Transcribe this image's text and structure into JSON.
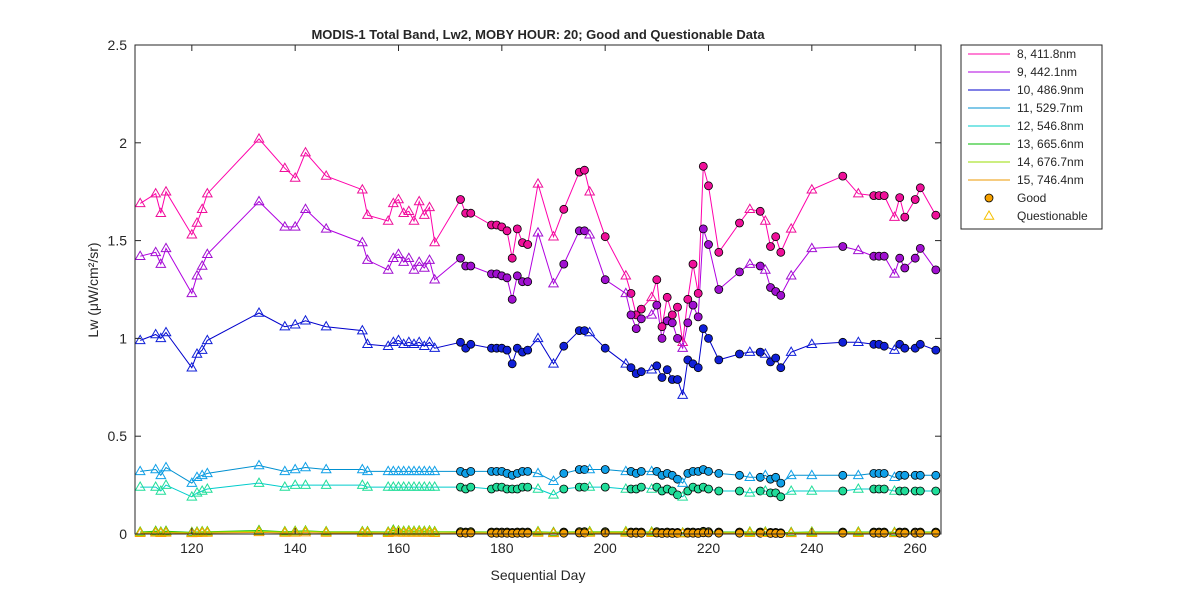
{
  "chart_data": {
    "type": "line",
    "title": "MODIS-1 Total Band,  Lw2, MOBY HOUR: 20;  Good and Questionable Data",
    "xlabel": "Sequential Day",
    "ylabel": "Lw (μW/cm²/sr)",
    "xlim": [
      109,
      265
    ],
    "ylim": [
      0,
      2.5
    ],
    "xticks": [
      120,
      140,
      160,
      180,
      200,
      220,
      240,
      260
    ],
    "yticks": [
      0,
      0.5,
      1,
      1.5,
      2,
      2.5
    ],
    "xtick_labels": [
      "120",
      "140",
      "160",
      "180",
      "200",
      "220",
      "240",
      "260"
    ],
    "ytick_labels": [
      "0",
      "0.5",
      "1",
      "1.5",
      "2",
      "2.5"
    ],
    "grid": false,
    "legend_position": "outside-top-right",
    "x": [
      110,
      113,
      114,
      115,
      120,
      121,
      122,
      123,
      133,
      138,
      140,
      142,
      146,
      153,
      154,
      158,
      159,
      160,
      161,
      162,
      163,
      164,
      165,
      166,
      167,
      172,
      173,
      174,
      178,
      179,
      180,
      181,
      182,
      183,
      184,
      185,
      187,
      190,
      192,
      195,
      196,
      197,
      200,
      204,
      205,
      206,
      207,
      209,
      210,
      211,
      212,
      213,
      214,
      215,
      216,
      217,
      218,
      219,
      220,
      222,
      226,
      228,
      230,
      231,
      232,
      233,
      234,
      236,
      240,
      246,
      249,
      252,
      253,
      254,
      256,
      257,
      258,
      260,
      261,
      264
    ],
    "flags": [
      "Q",
      "Q",
      "Q",
      "Q",
      "Q",
      "Q",
      "Q",
      "Q",
      "Q",
      "Q",
      "Q",
      "Q",
      "Q",
      "Q",
      "Q",
      "Q",
      "Q",
      "Q",
      "Q",
      "Q",
      "Q",
      "Q",
      "Q",
      "Q",
      "Q",
      "G",
      "G",
      "G",
      "G",
      "G",
      "G",
      "G",
      "G",
      "G",
      "G",
      "G",
      "Q",
      "Q",
      "G",
      "G",
      "G",
      "Q",
      "G",
      "Q",
      "G",
      "G",
      "G",
      "Q",
      "G",
      "G",
      "G",
      "G",
      "G",
      "Q",
      "G",
      "G",
      "G",
      "G",
      "G",
      "G",
      "G",
      "Q",
      "G",
      "Q",
      "G",
      "G",
      "G",
      "Q",
      "Q",
      "G",
      "Q",
      "G",
      "G",
      "G",
      "Q",
      "G",
      "G",
      "G",
      "G",
      "G"
    ],
    "series": [
      {
        "name": "8, 411.8nm",
        "color": "#ff00aa",
        "marker_color": "#ee1099",
        "values": [
          1.69,
          1.74,
          1.64,
          1.75,
          1.53,
          1.59,
          1.66,
          1.74,
          2.02,
          1.87,
          1.82,
          1.95,
          1.83,
          1.76,
          1.63,
          1.6,
          1.69,
          1.71,
          1.64,
          1.65,
          1.6,
          1.7,
          1.63,
          1.67,
          1.49,
          1.71,
          1.64,
          1.64,
          1.58,
          1.58,
          1.57,
          1.55,
          1.41,
          1.56,
          1.49,
          1.48,
          1.79,
          1.52,
          1.66,
          1.85,
          1.86,
          1.75,
          1.52,
          1.32,
          1.23,
          1.12,
          1.15,
          1.21,
          1.3,
          1.06,
          1.21,
          1.12,
          1.16,
          0.98,
          1.2,
          1.38,
          1.23,
          1.88,
          1.78,
          1.44,
          1.59,
          1.66,
          1.65,
          1.6,
          1.47,
          1.52,
          1.44,
          1.56,
          1.76,
          1.83,
          1.74,
          1.73,
          1.73,
          1.73,
          1.62,
          1.72,
          1.62,
          1.71,
          1.77,
          1.63
        ]
      },
      {
        "name": "9, 442.1nm",
        "color": "#b000e0",
        "marker_color": "#a010d0",
        "values": [
          1.42,
          1.44,
          1.38,
          1.46,
          1.23,
          1.32,
          1.37,
          1.43,
          1.7,
          1.57,
          1.57,
          1.66,
          1.56,
          1.49,
          1.4,
          1.35,
          1.41,
          1.43,
          1.39,
          1.41,
          1.35,
          1.39,
          1.36,
          1.4,
          1.3,
          1.41,
          1.37,
          1.37,
          1.33,
          1.33,
          1.32,
          1.31,
          1.2,
          1.32,
          1.29,
          1.29,
          1.54,
          1.28,
          1.38,
          1.55,
          1.55,
          1.53,
          1.3,
          1.23,
          1.12,
          1.05,
          1.1,
          1.12,
          1.17,
          1.0,
          1.09,
          1.08,
          1.0,
          0.95,
          1.08,
          1.17,
          1.11,
          1.56,
          1.48,
          1.25,
          1.34,
          1.38,
          1.37,
          1.35,
          1.26,
          1.24,
          1.22,
          1.32,
          1.46,
          1.47,
          1.45,
          1.42,
          1.42,
          1.42,
          1.33,
          1.41,
          1.36,
          1.41,
          1.46,
          1.35
        ]
      },
      {
        "name": "10, 486.9nm",
        "color": "#0000cc",
        "marker_color": "#1020d8",
        "values": [
          0.99,
          1.02,
          1.0,
          1.03,
          0.85,
          0.92,
          0.94,
          0.99,
          1.13,
          1.06,
          1.07,
          1.09,
          1.06,
          1.04,
          0.97,
          0.96,
          0.98,
          0.99,
          0.97,
          0.98,
          0.97,
          0.98,
          0.96,
          0.98,
          0.95,
          0.98,
          0.95,
          0.97,
          0.95,
          0.95,
          0.95,
          0.94,
          0.87,
          0.95,
          0.93,
          0.94,
          1.0,
          0.87,
          0.96,
          1.04,
          1.04,
          1.03,
          0.95,
          0.87,
          0.85,
          0.82,
          0.83,
          0.84,
          0.86,
          0.8,
          0.84,
          0.79,
          0.79,
          0.71,
          0.89,
          0.87,
          0.85,
          1.05,
          1.0,
          0.89,
          0.92,
          0.93,
          0.93,
          0.92,
          0.88,
          0.9,
          0.85,
          0.93,
          0.97,
          0.98,
          0.98,
          0.97,
          0.97,
          0.96,
          0.94,
          0.97,
          0.95,
          0.95,
          0.97,
          0.94
        ]
      },
      {
        "name": "11, 529.7nm",
        "color": "#0090d0",
        "marker_color": "#10a0e8",
        "values": [
          0.32,
          0.33,
          0.3,
          0.34,
          0.26,
          0.29,
          0.3,
          0.31,
          0.35,
          0.32,
          0.33,
          0.34,
          0.33,
          0.33,
          0.32,
          0.32,
          0.32,
          0.32,
          0.32,
          0.32,
          0.32,
          0.32,
          0.32,
          0.32,
          0.32,
          0.32,
          0.31,
          0.32,
          0.32,
          0.32,
          0.32,
          0.31,
          0.3,
          0.31,
          0.32,
          0.32,
          0.31,
          0.27,
          0.31,
          0.33,
          0.33,
          0.33,
          0.33,
          0.32,
          0.32,
          0.31,
          0.32,
          0.32,
          0.32,
          0.3,
          0.31,
          0.3,
          0.28,
          0.26,
          0.31,
          0.32,
          0.32,
          0.33,
          0.32,
          0.31,
          0.3,
          0.29,
          0.29,
          0.3,
          0.28,
          0.29,
          0.26,
          0.3,
          0.3,
          0.3,
          0.3,
          0.31,
          0.31,
          0.31,
          0.29,
          0.3,
          0.3,
          0.3,
          0.3,
          0.3
        ]
      },
      {
        "name": "12, 546.8nm",
        "color": "#00cccc",
        "marker_color": "#20dd99",
        "values": [
          0.24,
          0.24,
          0.22,
          0.25,
          0.19,
          0.21,
          0.22,
          0.23,
          0.26,
          0.24,
          0.25,
          0.25,
          0.25,
          0.25,
          0.24,
          0.24,
          0.24,
          0.24,
          0.24,
          0.24,
          0.24,
          0.24,
          0.24,
          0.24,
          0.24,
          0.24,
          0.23,
          0.24,
          0.23,
          0.24,
          0.24,
          0.23,
          0.23,
          0.23,
          0.24,
          0.24,
          0.23,
          0.2,
          0.23,
          0.24,
          0.24,
          0.24,
          0.24,
          0.23,
          0.23,
          0.23,
          0.24,
          0.23,
          0.24,
          0.22,
          0.23,
          0.22,
          0.2,
          0.19,
          0.22,
          0.24,
          0.23,
          0.24,
          0.23,
          0.22,
          0.22,
          0.21,
          0.22,
          0.22,
          0.21,
          0.21,
          0.19,
          0.22,
          0.22,
          0.22,
          0.23,
          0.23,
          0.23,
          0.23,
          0.22,
          0.22,
          0.22,
          0.22,
          0.22,
          0.22
        ]
      },
      {
        "name": "13, 665.6nm",
        "color": "#00bb00",
        "marker_color": "#10aa10",
        "values": [
          0.01,
          0.014,
          0.01,
          0.014,
          0.008,
          0.01,
          0.012,
          0.012,
          0.018,
          0.012,
          0.014,
          0.016,
          0.012,
          0.012,
          0.012,
          0.01,
          0.02,
          0.016,
          0.014,
          0.016,
          0.014,
          0.016,
          0.014,
          0.016,
          0.012,
          0.012,
          0.01,
          0.012,
          0.01,
          0.01,
          0.01,
          0.01,
          0.008,
          0.01,
          0.01,
          0.01,
          0.012,
          0.008,
          0.01,
          0.012,
          0.012,
          0.012,
          0.012,
          0.012,
          0.01,
          0.01,
          0.01,
          0.01,
          0.012,
          0.008,
          0.01,
          0.008,
          0.008,
          0.006,
          0.01,
          0.01,
          0.008,
          0.014,
          0.012,
          0.01,
          0.01,
          0.01,
          0.01,
          0.01,
          0.008,
          0.008,
          0.006,
          0.008,
          0.01,
          0.01,
          0.01,
          0.01,
          0.01,
          0.01,
          0.008,
          0.01,
          0.01,
          0.01,
          0.01,
          0.01
        ]
      },
      {
        "name": "14, 676.7nm",
        "color": "#99dd00",
        "marker_color": "#aadd00",
        "values": [
          0.008,
          0.01,
          0.008,
          0.01,
          0.006,
          0.008,
          0.01,
          0.01,
          0.014,
          0.01,
          0.012,
          0.014,
          0.01,
          0.01,
          0.01,
          0.008,
          0.016,
          0.014,
          0.012,
          0.014,
          0.012,
          0.014,
          0.012,
          0.014,
          0.01,
          0.01,
          0.008,
          0.01,
          0.008,
          0.008,
          0.008,
          0.008,
          0.006,
          0.008,
          0.008,
          0.008,
          0.01,
          0.006,
          0.008,
          0.01,
          0.01,
          0.01,
          0.01,
          0.01,
          0.008,
          0.008,
          0.008,
          0.008,
          0.01,
          0.006,
          0.008,
          0.006,
          0.006,
          0.005,
          0.008,
          0.008,
          0.006,
          0.012,
          0.01,
          0.008,
          0.008,
          0.008,
          0.008,
          0.008,
          0.006,
          0.006,
          0.005,
          0.006,
          0.008,
          0.008,
          0.008,
          0.008,
          0.008,
          0.008,
          0.006,
          0.008,
          0.008,
          0.008,
          0.008,
          0.008
        ]
      },
      {
        "name": "15, 746.4nm",
        "color": "#ee9900",
        "marker_color": "#f5a000",
        "values": [
          0.004,
          0.006,
          0.004,
          0.006,
          0.003,
          0.004,
          0.005,
          0.005,
          0.008,
          0.005,
          0.006,
          0.007,
          0.005,
          0.005,
          0.005,
          0.004,
          0.008,
          0.006,
          0.005,
          0.006,
          0.005,
          0.006,
          0.005,
          0.006,
          0.004,
          0.005,
          0.004,
          0.005,
          0.004,
          0.004,
          0.004,
          0.004,
          0.003,
          0.004,
          0.004,
          0.004,
          0.005,
          0.003,
          0.004,
          0.005,
          0.005,
          0.005,
          0.005,
          0.005,
          0.004,
          0.004,
          0.004,
          0.004,
          0.005,
          0.003,
          0.004,
          0.003,
          0.003,
          0.002,
          0.004,
          0.004,
          0.003,
          0.006,
          0.005,
          0.004,
          0.004,
          0.004,
          0.004,
          0.004,
          0.003,
          0.003,
          0.002,
          0.003,
          0.004,
          0.004,
          0.004,
          0.004,
          0.004,
          0.004,
          0.003,
          0.004,
          0.004,
          0.004,
          0.004,
          0.004
        ]
      }
    ],
    "marker_legend": [
      {
        "label": "Good",
        "marker": "circle",
        "color": "#f5a000"
      },
      {
        "label": "Questionable",
        "marker": "triangle",
        "color": "#f5c000"
      }
    ]
  }
}
